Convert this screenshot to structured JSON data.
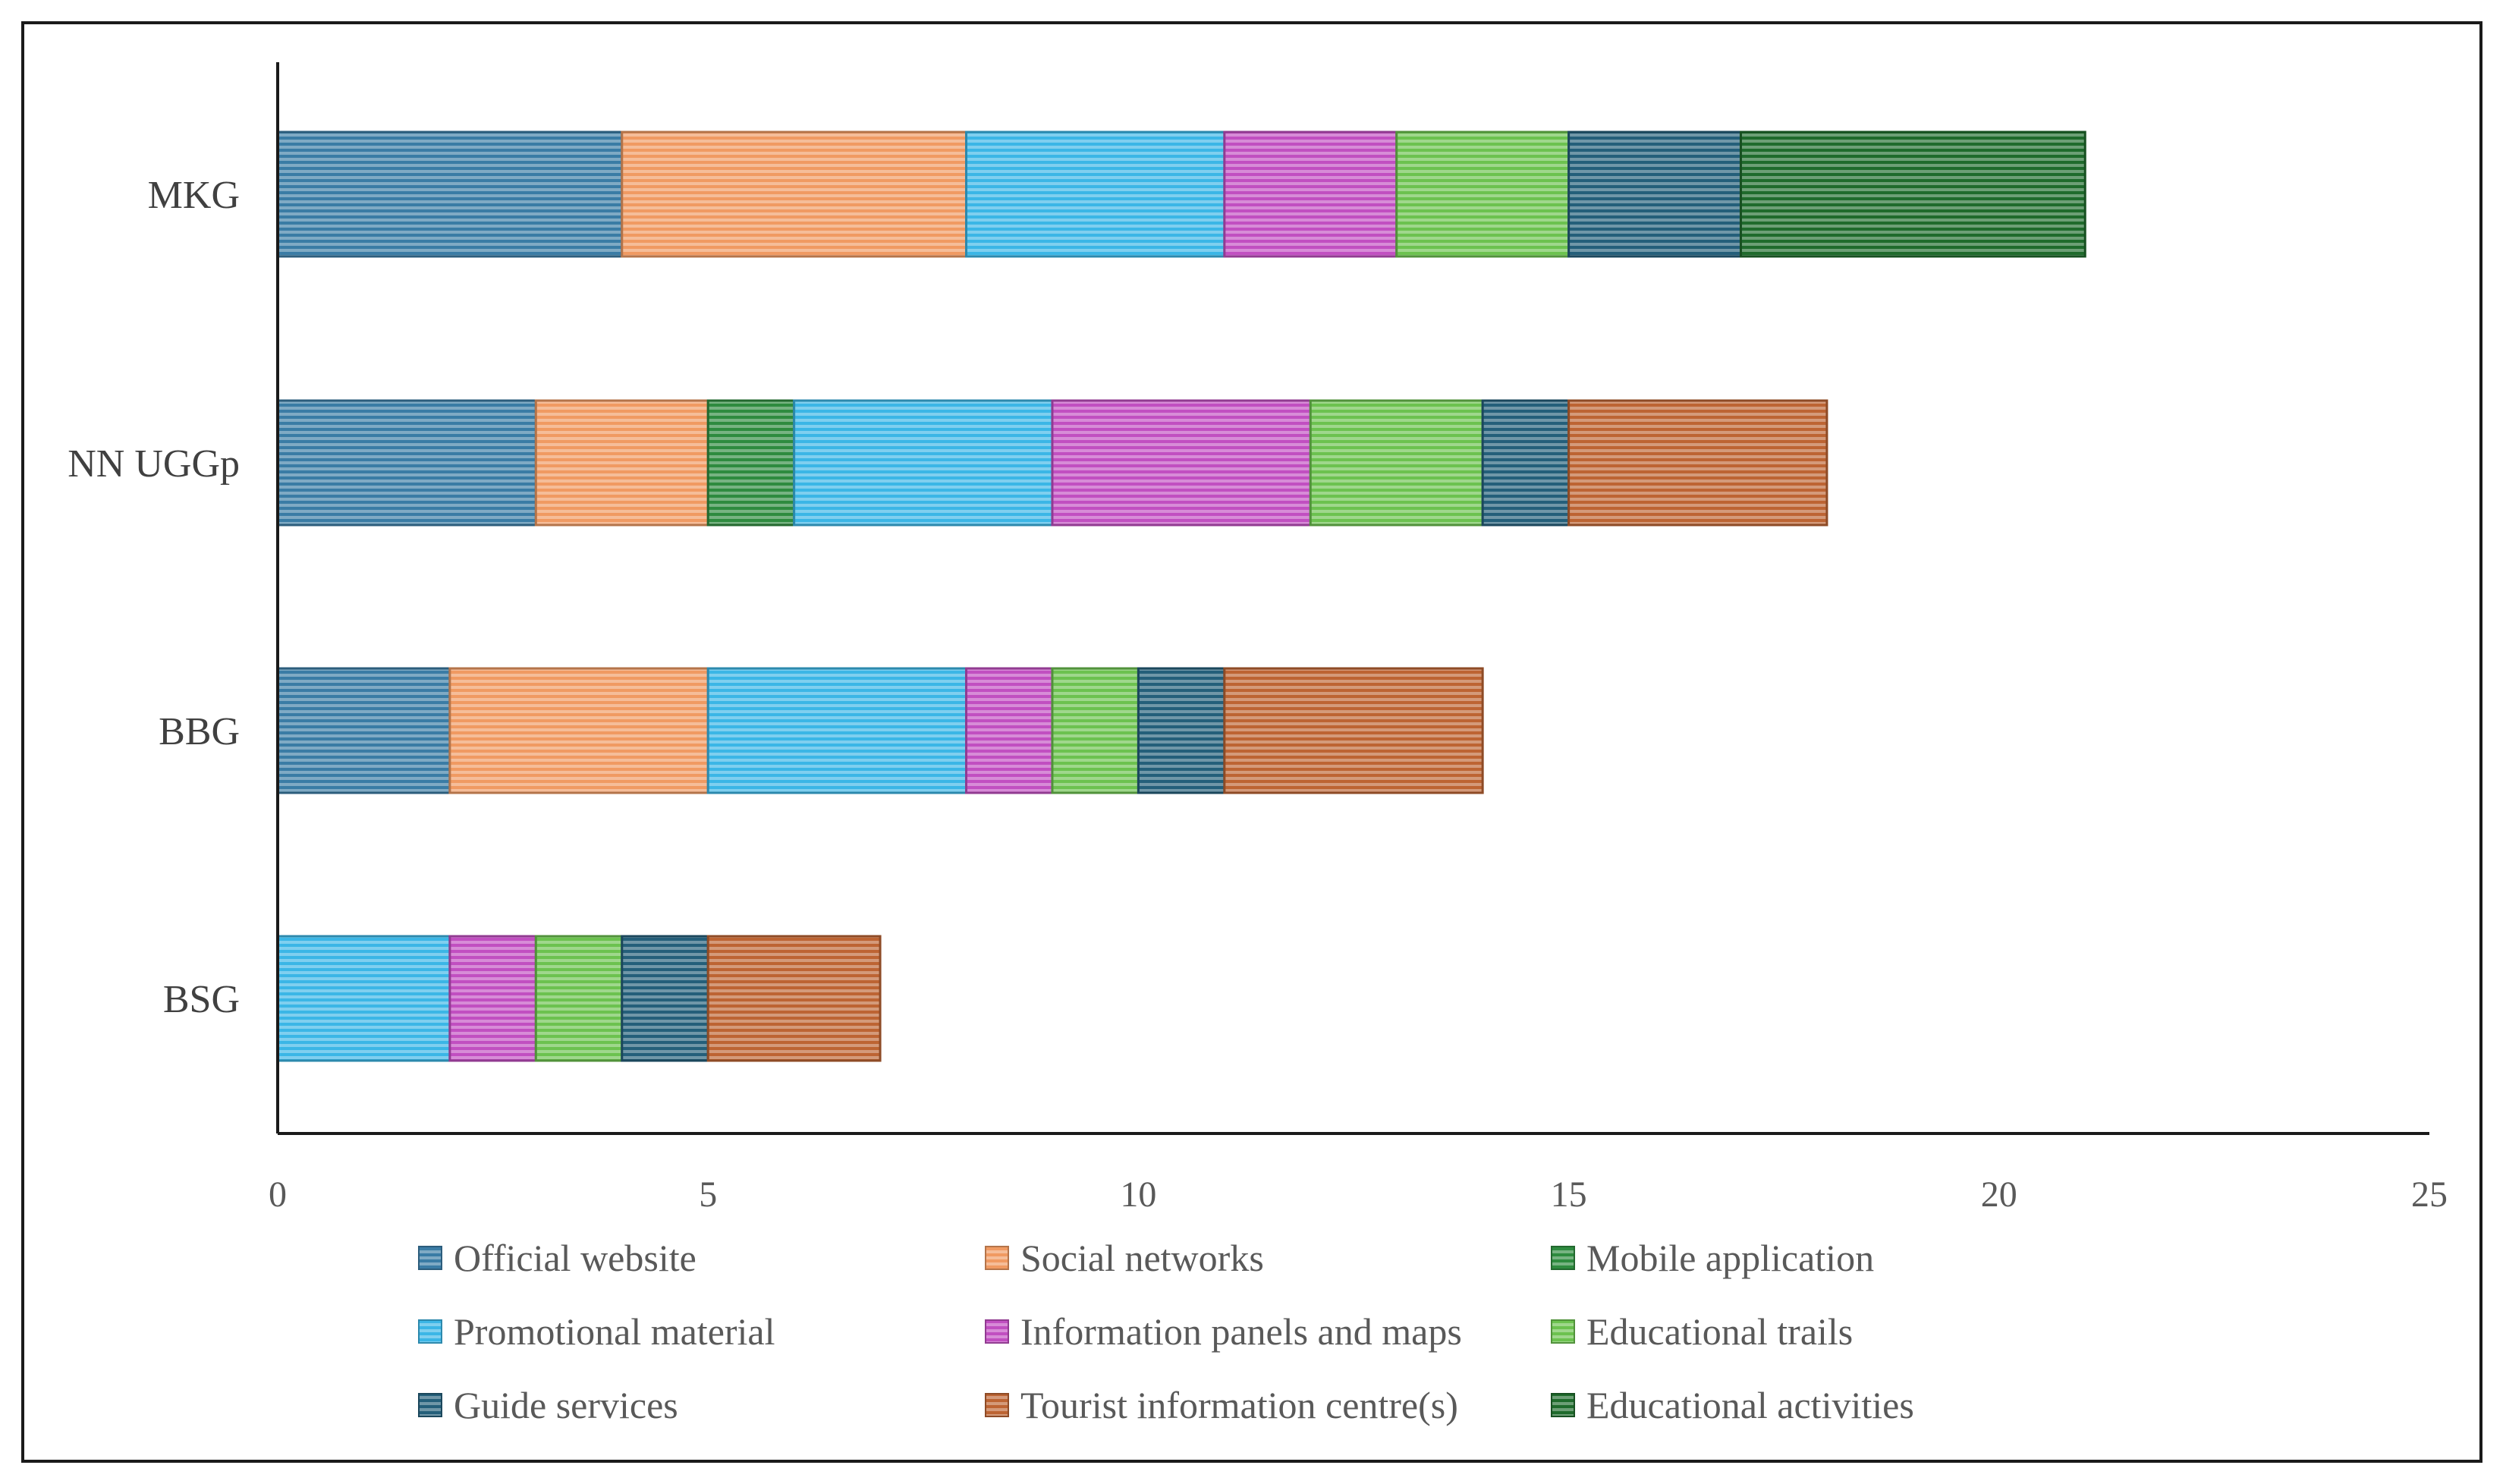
{
  "chart_data": {
    "type": "bar",
    "orientation": "horizontal",
    "stacked": true,
    "title": "",
    "xlabel": "",
    "ylabel": "",
    "xlim": [
      0,
      25
    ],
    "x_ticks": [
      0,
      5,
      10,
      15,
      20,
      25
    ],
    "grid": false,
    "legend_position": "bottom",
    "categories": [
      "MKG",
      "NN UGGp",
      "BBG",
      "BSG"
    ],
    "series": [
      {
        "name": "Official website",
        "color": "#3a7ca5",
        "segments": {
          "MKG": [
            0,
            4
          ],
          "NN UGGp": [
            0,
            3
          ],
          "BBG": [
            0,
            2
          ]
        }
      },
      {
        "name": "Social networks",
        "color": "#f09a62",
        "segments": {
          "MKG": [
            4,
            8
          ],
          "NN UGGp": [
            3,
            5
          ],
          "BBG": [
            2,
            5
          ]
        }
      },
      {
        "name": "Mobile application",
        "color": "#2e8b3f",
        "segments": {
          "NN UGGp": [
            5,
            6
          ]
        }
      },
      {
        "name": "Promotional material",
        "color": "#3bb6e6",
        "segments": {
          "MKG": [
            8,
            11
          ],
          "NN UGGp": [
            6,
            9
          ],
          "BBG": [
            5,
            8
          ],
          "BSG": [
            0,
            2
          ]
        }
      },
      {
        "name": "Information panels and maps",
        "color": "#c14fc1",
        "segments": {
          "MKG": [
            11,
            13
          ],
          "NN UGGp": [
            9,
            12
          ],
          "BBG": [
            8,
            9
          ],
          "BSG": [
            2,
            3
          ]
        }
      },
      {
        "name": "Educational trails",
        "color": "#6cc24f",
        "segments": {
          "MKG": [
            13,
            15
          ],
          "NN UGGp": [
            12,
            14
          ],
          "BBG": [
            9,
            10
          ],
          "BSG": [
            3,
            4
          ]
        }
      },
      {
        "name": "Guide services",
        "color": "#245f7a",
        "segments": {
          "MKG": [
            15,
            17
          ],
          "NN UGGp": [
            14,
            15
          ],
          "BBG": [
            10,
            11
          ],
          "BSG": [
            4,
            5
          ]
        }
      },
      {
        "name": "Tourist information centre(s)",
        "color": "#bd6433",
        "segments": {
          "NN UGGp": [
            15,
            18
          ],
          "BBG": [
            11,
            14
          ],
          "BSG": [
            5,
            7
          ]
        }
      },
      {
        "name": "Educational activities",
        "color": "#1f6b2c",
        "segments": {
          "MKG": [
            17,
            21
          ]
        }
      }
    ]
  }
}
